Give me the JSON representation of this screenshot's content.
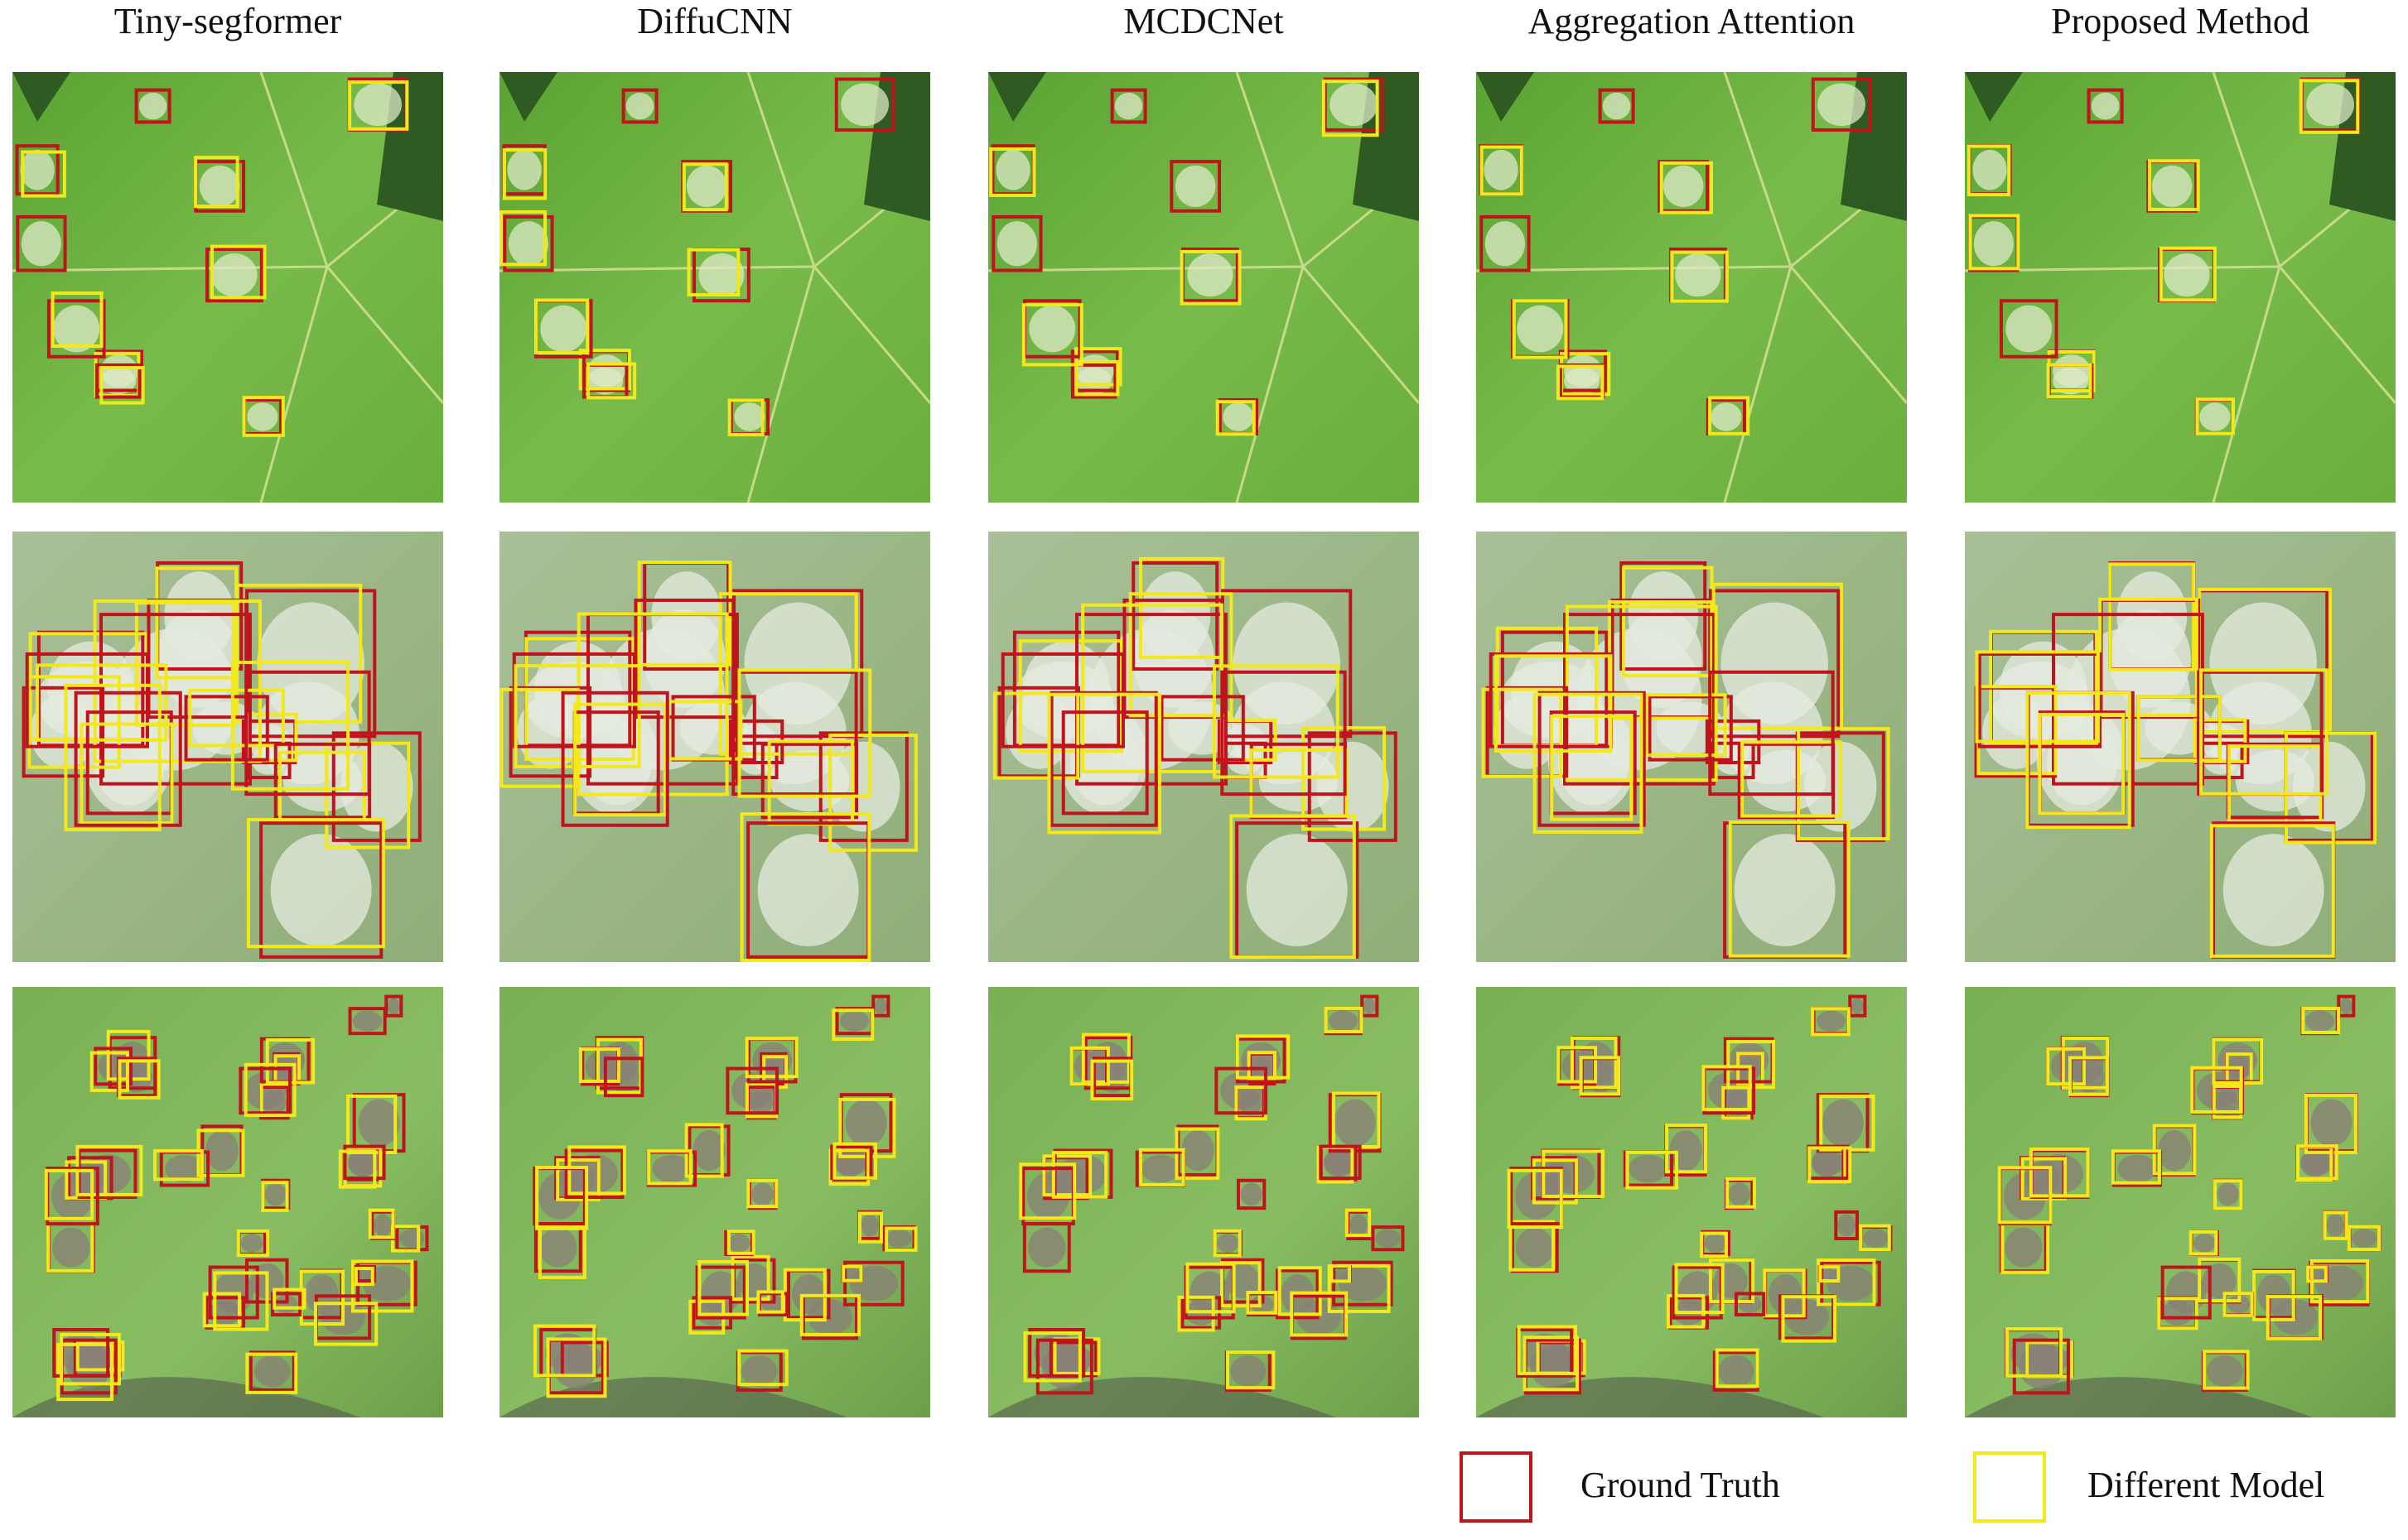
{
  "columns": [
    "Tiny-segformer",
    "DiffuCNN",
    "MCDCNet",
    "Aggregation Attention",
    "Proposed Method"
  ],
  "legend": {
    "items": [
      {
        "label": "Ground Truth"
      },
      {
        "label": "Different Model"
      }
    ]
  }
}
